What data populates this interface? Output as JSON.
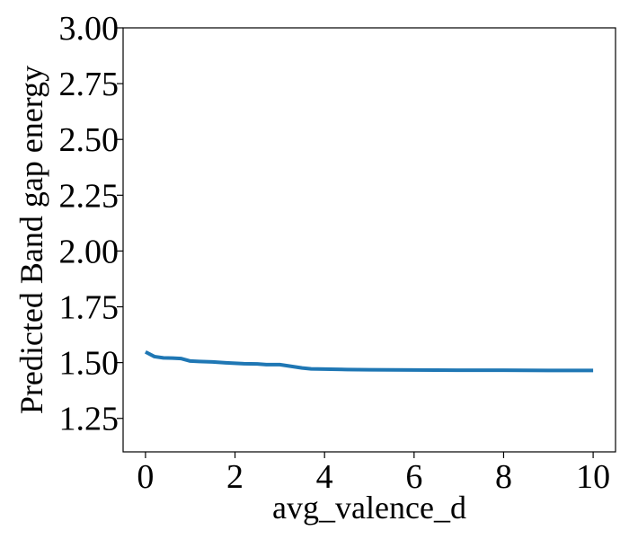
{
  "chart_data": {
    "type": "line",
    "title": "",
    "xlabel": "avg_valence_d",
    "ylabel": "Predicted Band gap energy",
    "xlim": [
      -0.5,
      10.5
    ],
    "ylim": [
      1.1,
      3.0
    ],
    "xticks": [
      0,
      2,
      4,
      6,
      8,
      10
    ],
    "xtick_labels": [
      "0",
      "2",
      "4",
      "6",
      "8",
      "10"
    ],
    "yticks": [
      1.25,
      1.5,
      1.75,
      2.0,
      2.25,
      2.5,
      2.75,
      3.0
    ],
    "ytick_labels": [
      "1.25",
      "1.50",
      "1.75",
      "2.00",
      "2.25",
      "2.50",
      "2.75",
      "3.00"
    ],
    "grid": false,
    "series": [
      {
        "color": "#1f77b4",
        "x": [
          0,
          0.2,
          0.4,
          0.6,
          0.8,
          1.0,
          1.2,
          1.5,
          1.8,
          2.0,
          2.2,
          2.5,
          2.7,
          3.0,
          3.2,
          3.5,
          3.7,
          4.0,
          4.5,
          5.0,
          6.0,
          7.0,
          8.0,
          9.0,
          10.0
        ],
        "y": [
          1.548,
          1.527,
          1.521,
          1.52,
          1.518,
          1.507,
          1.505,
          1.503,
          1.499,
          1.497,
          1.495,
          1.494,
          1.491,
          1.491,
          1.485,
          1.476,
          1.472,
          1.471,
          1.469,
          1.468,
          1.467,
          1.466,
          1.466,
          1.465,
          1.465
        ]
      }
    ]
  }
}
